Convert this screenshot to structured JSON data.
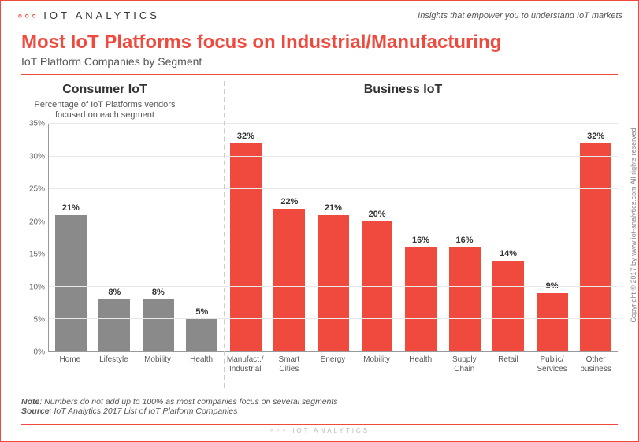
{
  "header": {
    "logo_text": "IOT ANALYTICS",
    "tagline": "Insights that empower you to understand IoT markets"
  },
  "title": "Most IoT Platforms focus on Industrial/Manufacturing",
  "subtitle": "IoT Platform Companies by Segment",
  "group_labels": {
    "left": "Consumer IoT",
    "right": "Business IoT"
  },
  "ylabel": "Percentage of IoT Platforms vendors focused on each segment",
  "chart": {
    "type": "bar",
    "ylim": [
      0,
      35
    ],
    "ytick_step": 5,
    "yticks": [
      "0%",
      "5%",
      "10%",
      "15%",
      "20%",
      "25%",
      "30%",
      "35%"
    ],
    "bar_width": 0.72,
    "grid_color": "#e8e8e8",
    "axis_color": "#999999",
    "background_color": "#ffffff",
    "label_fontsize": 11,
    "value_fontsize": 11,
    "divider_after_index": 3,
    "consumer_color": "#8a8a8a",
    "business_color": "#f04a3e",
    "bars": [
      {
        "label": "Home",
        "value": 21,
        "display": "21%",
        "group": "consumer"
      },
      {
        "label": "Lifestyle",
        "value": 8,
        "display": "8%",
        "group": "consumer"
      },
      {
        "label": "Mobility",
        "value": 8,
        "display": "8%",
        "group": "consumer"
      },
      {
        "label": "Health",
        "value": 5,
        "display": "5%",
        "group": "consumer"
      },
      {
        "label": "Manufact./ Industrial",
        "value": 32,
        "display": "32%",
        "group": "business"
      },
      {
        "label": "Smart Cities",
        "value": 22,
        "display": "22%",
        "group": "business"
      },
      {
        "label": "Energy",
        "value": 21,
        "display": "21%",
        "group": "business"
      },
      {
        "label": "Mobility",
        "value": 20,
        "display": "20%",
        "group": "business"
      },
      {
        "label": "Health",
        "value": 16,
        "display": "16%",
        "group": "business"
      },
      {
        "label": "Supply Chain",
        "value": 16,
        "display": "16%",
        "group": "business"
      },
      {
        "label": "Retail",
        "value": 14,
        "display": "14%",
        "group": "business"
      },
      {
        "label": "Public/ Services",
        "value": 9,
        "display": "9%",
        "group": "business"
      },
      {
        "label": "Other business",
        "value": 32,
        "display": "32%",
        "group": "business"
      }
    ]
  },
  "note_label": "Note",
  "note_text": ": Numbers do not add up to 100% as most companies focus on several segments",
  "source_label": "Source",
  "source_text": ": IoT Analytics 2017 List of IoT Platform Companies",
  "footer_logo": "IOT ANALYTICS",
  "copyright": "Copyright © 2017 by www.iot-analytics.com All rights reserved"
}
